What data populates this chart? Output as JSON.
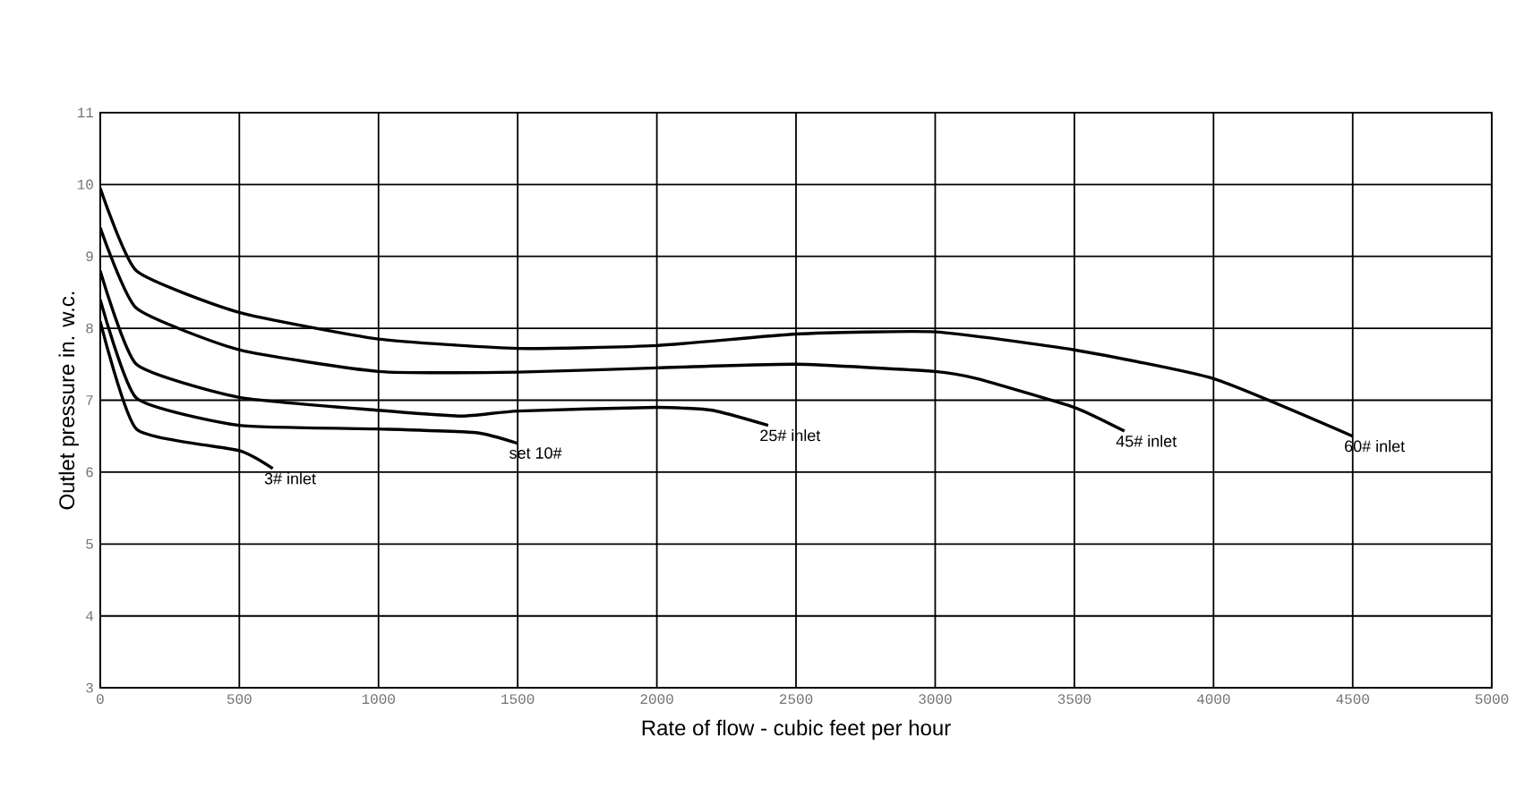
{
  "chart_data": {
    "type": "line",
    "xlabel": "Rate of flow - cubic feet per hour",
    "ylabel": "Outlet pressure in. w.c.",
    "xlim": [
      0,
      5000
    ],
    "ylim": [
      3,
      11
    ],
    "xticks": [
      0,
      500,
      1000,
      1500,
      2000,
      2500,
      3000,
      3500,
      4000,
      4500,
      5000
    ],
    "yticks": [
      3,
      4,
      5,
      6,
      7,
      8,
      9,
      10,
      11
    ],
    "grid": true,
    "marker": "none",
    "line_style": "solid",
    "series": [
      {
        "name": "3# inlet",
        "color": "#000000",
        "x": [
          0,
          130,
          500,
          620
        ],
        "values": [
          8.1,
          6.6,
          6.3,
          6.05
        ]
      },
      {
        "name": "set 10#",
        "color": "#000000",
        "x": [
          0,
          130,
          500,
          1000,
          1350,
          1500
        ],
        "values": [
          8.4,
          7.03,
          6.65,
          6.6,
          6.55,
          6.4
        ]
      },
      {
        "name": "25# inlet",
        "color": "#000000",
        "x": [
          0,
          130,
          500,
          1000,
          1300,
          1500,
          2000,
          2200,
          2400
        ],
        "values": [
          8.8,
          7.5,
          7.04,
          6.86,
          6.78,
          6.85,
          6.9,
          6.86,
          6.65
        ]
      },
      {
        "name": "45# inlet",
        "color": "#000000",
        "x": [
          0,
          130,
          500,
          1000,
          1500,
          2000,
          2500,
          3000,
          3150,
          3500,
          3680
        ],
        "values": [
          9.4,
          8.28,
          7.7,
          7.4,
          7.39,
          7.45,
          7.5,
          7.4,
          7.3,
          6.9,
          6.57
        ]
      },
      {
        "name": "60# inlet",
        "color": "#000000",
        "x": [
          0,
          130,
          500,
          1000,
          1500,
          2000,
          2500,
          3000,
          3500,
          4000,
          4500
        ],
        "values": [
          9.95,
          8.8,
          8.22,
          7.85,
          7.72,
          7.76,
          7.92,
          7.95,
          7.7,
          7.3,
          6.5
        ]
      }
    ]
  }
}
